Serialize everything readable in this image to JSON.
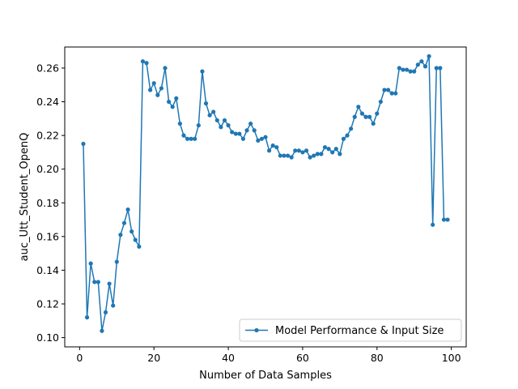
{
  "chart_data": {
    "type": "line",
    "xlabel": "Number of Data Samples",
    "ylabel": "auc_Utt_Student_OpenQ",
    "xlim": [
      -4,
      104
    ],
    "ylim": [
      0.0945,
      0.2725
    ],
    "xticks": [
      0,
      20,
      40,
      60,
      80,
      100
    ],
    "yticks": [
      0.1,
      0.12,
      0.14,
      0.16,
      0.18,
      0.2,
      0.22,
      0.24,
      0.26
    ],
    "grid": false,
    "legend_position": "lower-right",
    "colors": {
      "series": "#1f77b4"
    },
    "series": [
      {
        "name": "Model Performance & Input Size",
        "marker": "circle",
        "x": [
          1,
          2,
          3,
          4,
          5,
          6,
          7,
          8,
          9,
          10,
          11,
          12,
          13,
          14,
          15,
          16,
          17,
          18,
          19,
          20,
          21,
          22,
          23,
          24,
          25,
          26,
          27,
          28,
          29,
          30,
          31,
          32,
          33,
          34,
          35,
          36,
          37,
          38,
          39,
          40,
          41,
          42,
          43,
          44,
          45,
          46,
          47,
          48,
          49,
          50,
          51,
          52,
          53,
          54,
          55,
          56,
          57,
          58,
          59,
          60,
          61,
          62,
          63,
          64,
          65,
          66,
          67,
          68,
          69,
          70,
          71,
          72,
          73,
          74,
          75,
          76,
          77,
          78,
          79,
          80,
          81,
          82,
          83,
          84,
          85,
          86,
          87,
          88,
          89,
          90,
          91,
          92,
          93,
          94,
          95,
          96,
          97,
          98,
          99
        ],
        "y": [
          0.215,
          0.112,
          0.144,
          0.133,
          0.133,
          0.104,
          0.115,
          0.132,
          0.119,
          0.145,
          0.161,
          0.168,
          0.176,
          0.163,
          0.158,
          0.154,
          0.264,
          0.263,
          0.247,
          0.251,
          0.244,
          0.248,
          0.26,
          0.24,
          0.237,
          0.242,
          0.227,
          0.22,
          0.218,
          0.218,
          0.218,
          0.226,
          0.258,
          0.239,
          0.232,
          0.234,
          0.229,
          0.225,
          0.229,
          0.226,
          0.222,
          0.221,
          0.221,
          0.218,
          0.223,
          0.227,
          0.223,
          0.217,
          0.218,
          0.219,
          0.211,
          0.214,
          0.213,
          0.208,
          0.208,
          0.208,
          0.207,
          0.211,
          0.211,
          0.21,
          0.211,
          0.207,
          0.208,
          0.209,
          0.209,
          0.213,
          0.212,
          0.21,
          0.212,
          0.209,
          0.218,
          0.22,
          0.224,
          0.231,
          0.237,
          0.233,
          0.231,
          0.231,
          0.227,
          0.233,
          0.24,
          0.247,
          0.247,
          0.245,
          0.245,
          0.26,
          0.259,
          0.259,
          0.258,
          0.258,
          0.262,
          0.264,
          0.261,
          0.267,
          0.167,
          0.26,
          0.26,
          0.17,
          0.17
        ]
      }
    ]
  }
}
